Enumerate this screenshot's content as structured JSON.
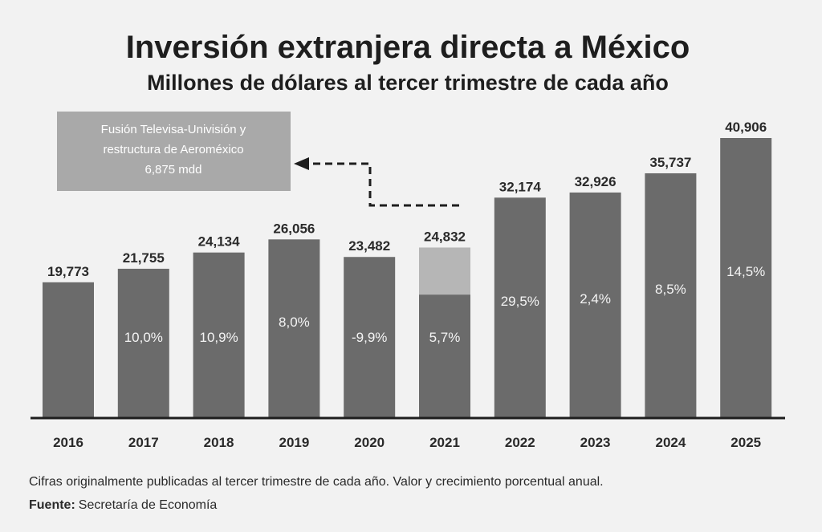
{
  "chart_data": {
    "type": "bar",
    "title": "Inversión extranjera directa a México",
    "subtitle": "Millones de dólares al tercer trimestre de cada año",
    "xlabel": "",
    "ylabel": "",
    "ylim": [
      0,
      41000
    ],
    "grid": false,
    "categories": [
      "2016",
      "2017",
      "2018",
      "2019",
      "2020",
      "2021",
      "2022",
      "2023",
      "2024",
      "2025"
    ],
    "values": [
      19773,
      21755,
      24134,
      26056,
      23482,
      24832,
      32174,
      32926,
      35737,
      40906
    ],
    "value_labels": [
      "19,773",
      "21,755",
      "24,134",
      "26,056",
      "23,482",
      "24,832",
      "32,174",
      "32,926",
      "35,737",
      "40,906"
    ],
    "growth_labels": [
      "",
      "10,0%",
      "10,9%",
      "8,0%",
      "-9,9%",
      "5,7%",
      "29,5%",
      "2,4%",
      "8,5%",
      "14,5%"
    ],
    "highlight": {
      "category": "2021",
      "value": 6875
    },
    "annotation": {
      "lines": [
        "Fusión Televisa-Univisión y",
        "restructura de Aeroméxico",
        "6,875 mdd"
      ]
    },
    "colors": {
      "bar": "#6b6b6b",
      "highlight": "#b6b6b6",
      "annotation_box": "#a9a9a9",
      "background": "#f2f2f2"
    }
  },
  "footer": {
    "note": "Cifras originalmente publicadas al tercer trimestre de cada año. Valor y crecimiento porcentual anual.",
    "source_label": "Fuente:",
    "source": "Secretaría de Economía"
  }
}
